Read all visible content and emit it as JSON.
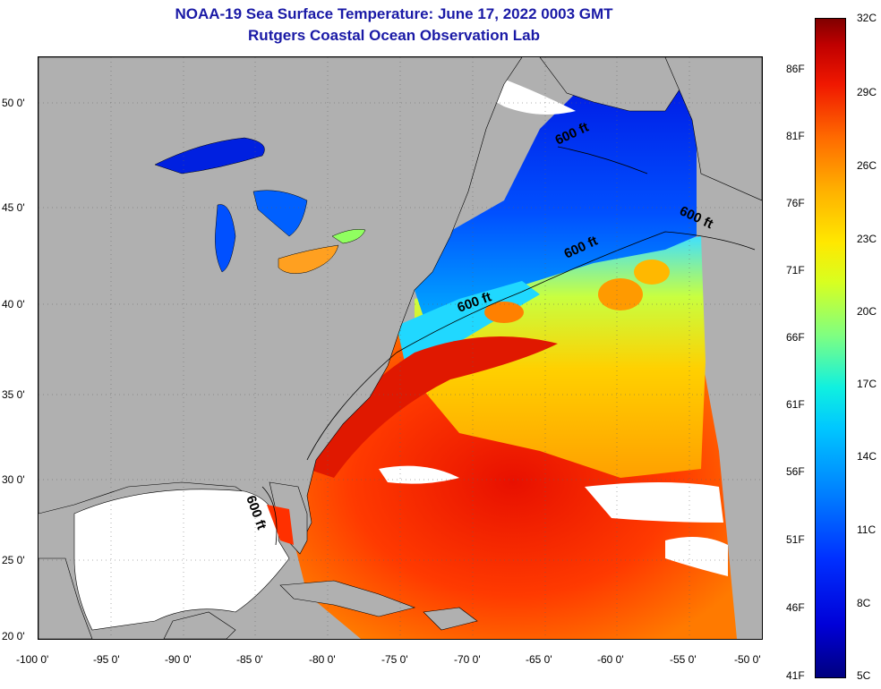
{
  "title": {
    "line1": "NOAA-19 Sea Surface Temperature:  June 17, 2022 0003 GMT",
    "line2": "Rutgers Coastal Ocean Observation Lab"
  },
  "map": {
    "lon_range": [
      -100,
      -50
    ],
    "lat_range": [
      20,
      52
    ],
    "lat_labels": [
      "50 0'",
      "45 0'",
      "40 0'",
      "35 0'",
      "30 0'",
      "25 0'",
      "20 0'"
    ],
    "lon_labels": [
      "-100 0'",
      "-95 0'",
      "-90 0'",
      "-85 0'",
      "-80 0'",
      "-75 0'",
      "-70 0'",
      "-65 0'",
      "-60 0'",
      "-55 0'",
      "-50 0'"
    ],
    "contour_labels": [
      "600 ft",
      "600 ft",
      "600 ft",
      "600 ft",
      "600 ft"
    ],
    "land_color": "#b0b0b0",
    "no_data_color": "#ffffff",
    "grid": true
  },
  "colorbar": {
    "f_labels": [
      "86F",
      "81F",
      "76F",
      "71F",
      "66F",
      "61F",
      "56F",
      "51F",
      "46F",
      "41F"
    ],
    "c_labels": [
      "32C",
      "29C",
      "26C",
      "23C",
      "20C",
      "17C",
      "14C",
      "11C",
      "8C",
      "5C"
    ],
    "colors": [
      "#00007f",
      "#0000d8",
      "#0030ff",
      "#0080ff",
      "#00c8ff",
      "#10f0e0",
      "#80ff80",
      "#d8ff20",
      "#ffe800",
      "#ffb000",
      "#ff6a00",
      "#f01800",
      "#c00000",
      "#800000"
    ]
  }
}
